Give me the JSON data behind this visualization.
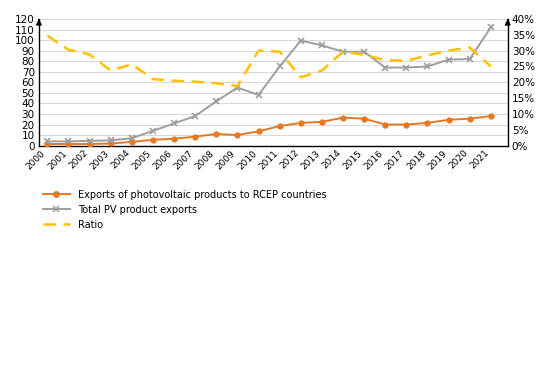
{
  "years": [
    2000,
    2001,
    2002,
    2003,
    2004,
    2005,
    2006,
    2007,
    2008,
    2009,
    2010,
    2011,
    2012,
    2013,
    2014,
    2015,
    2016,
    2017,
    2018,
    2019,
    2020,
    2021
  ],
  "rcep_exports": [
    1.5,
    1.5,
    1.5,
    2.0,
    3.5,
    5.5,
    6.5,
    8.5,
    11.0,
    10.0,
    13.5,
    18.5,
    21.5,
    22.5,
    26.5,
    25.5,
    20.0,
    20.0,
    21.5,
    24.5,
    25.5,
    28.0
  ],
  "total_pv_exports": [
    4.0,
    4.0,
    4.5,
    5.0,
    7.0,
    14.0,
    21.0,
    28.0,
    42.0,
    55.0,
    48.0,
    75.0,
    99.5,
    95.0,
    89.0,
    89.0,
    74.0,
    74.0,
    75.0,
    81.5,
    82.0,
    112.0
  ],
  "ratio_pct": [
    0.347,
    0.303,
    0.288,
    0.237,
    0.257,
    0.21,
    0.205,
    0.202,
    0.197,
    0.188,
    0.3,
    0.297,
    0.216,
    0.237,
    0.297,
    0.287,
    0.27,
    0.268,
    0.285,
    0.3,
    0.31,
    0.25
  ],
  "left_ylim": [
    0,
    120
  ],
  "left_yticks": [
    0,
    10,
    20,
    30,
    40,
    50,
    60,
    70,
    80,
    90,
    100,
    110,
    120
  ],
  "right_ylim": [
    0,
    0.4
  ],
  "right_yticks": [
    0.0,
    0.05,
    0.1,
    0.15,
    0.2,
    0.25,
    0.3,
    0.35,
    0.4
  ],
  "right_yticklabels": [
    "0%",
    "5%",
    "10%",
    "15%",
    "20%",
    "25%",
    "30%",
    "35%",
    "40%"
  ],
  "rcep_color": "#E87722",
  "total_color": "#9E9E9E",
  "ratio_color": "#FFC000",
  "legend_labels": [
    "Exports of photovoltaic products to RCEP countries",
    "Total PV product exports",
    "Ratio"
  ],
  "background_color": "#ffffff",
  "grid_color": "#d0d0d0",
  "figsize": [
    5.5,
    3.9
  ],
  "dpi": 100
}
